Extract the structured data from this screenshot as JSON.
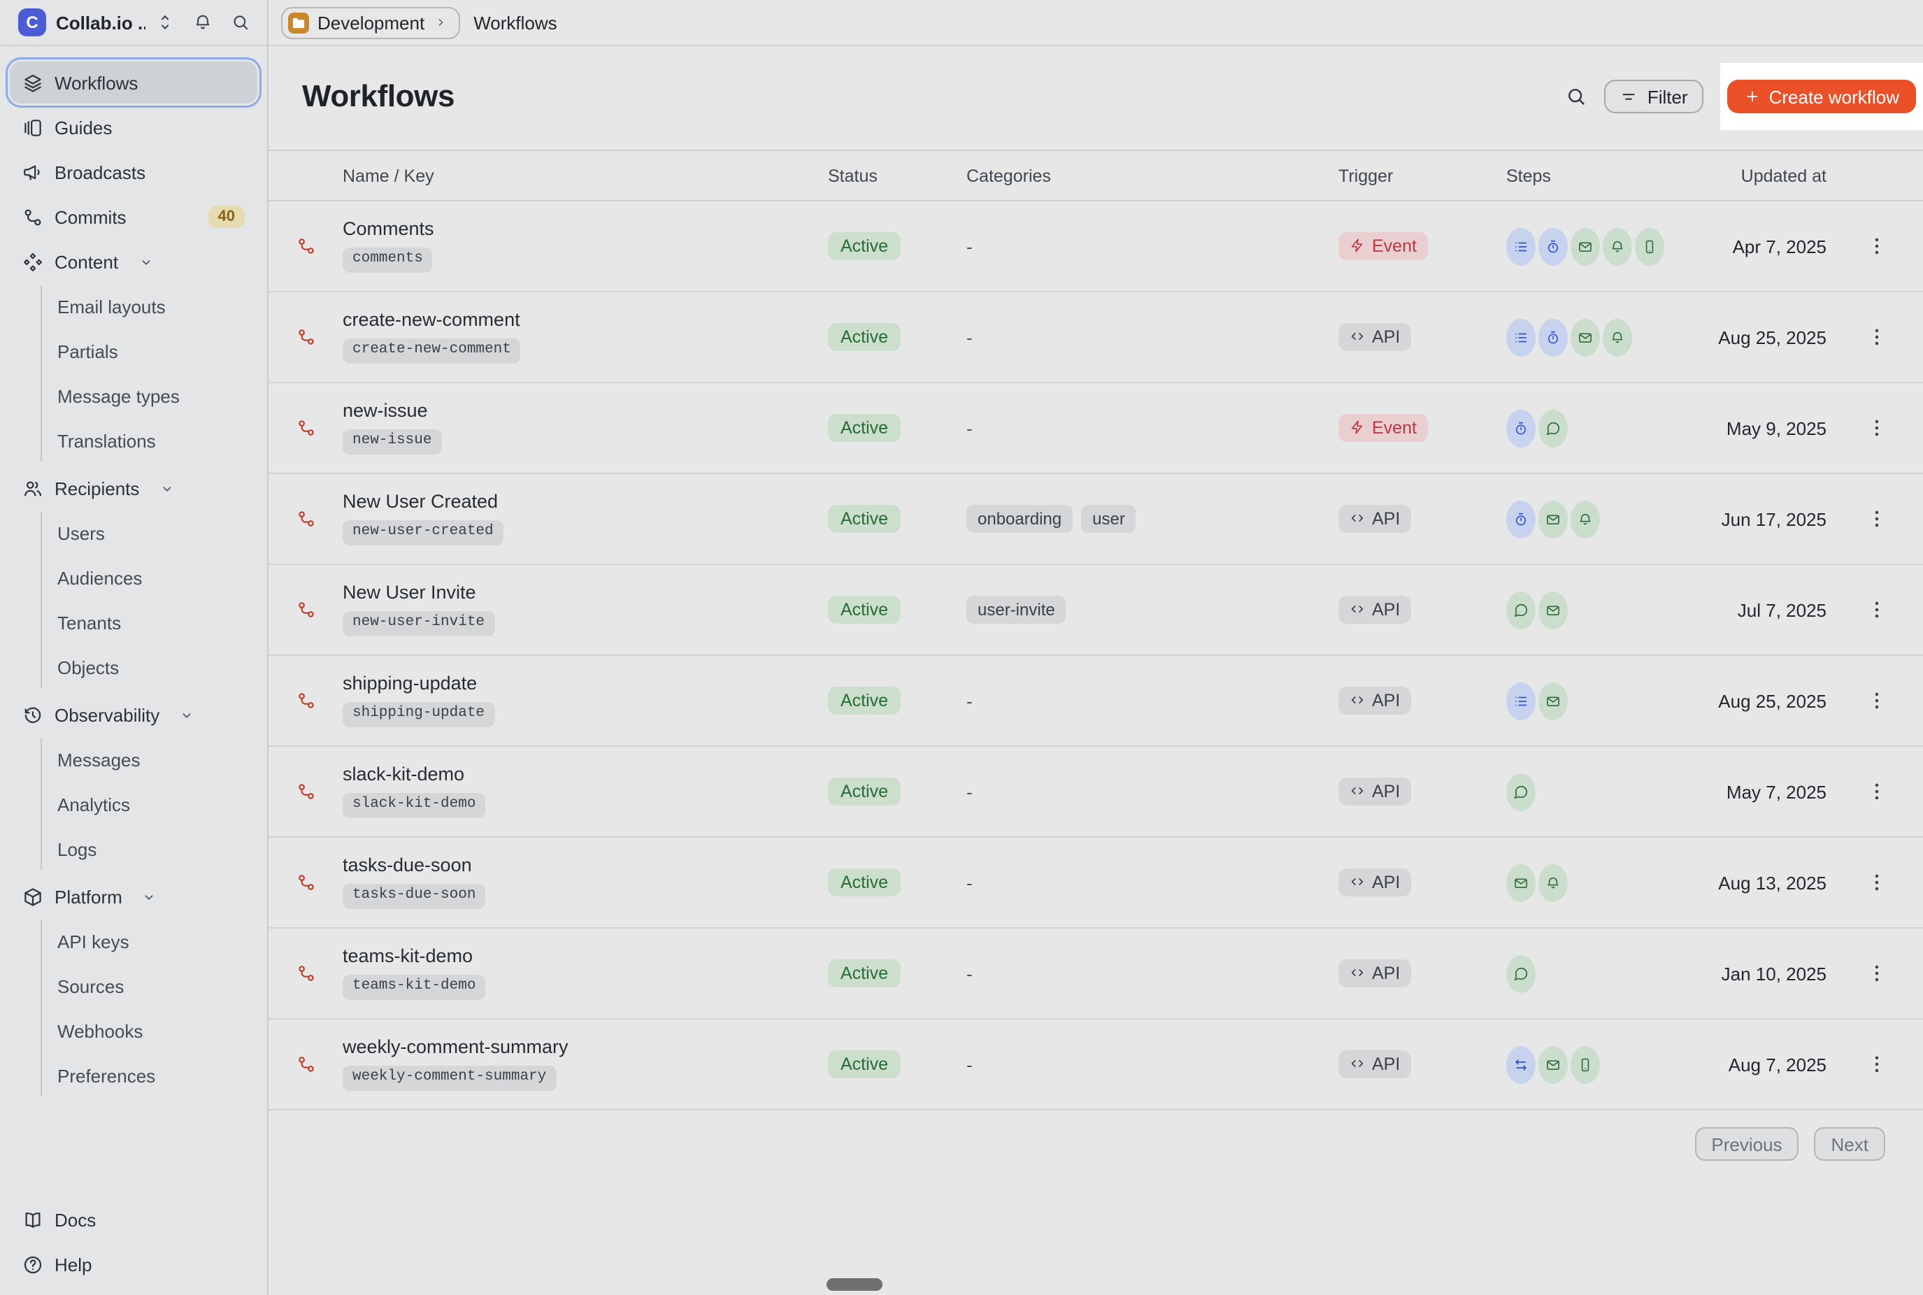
{
  "workspace": {
    "name": "Collab.io ...",
    "logo_letter": "C",
    "logo_color": "#4C5CD5",
    "icons": [
      "workspace-switcher-icon",
      "bell-icon",
      "search-icon"
    ]
  },
  "topbar": {
    "environment": "Development",
    "environment_icon": "folder-icon",
    "breadcrumb_page": "Workflows"
  },
  "sidebar": {
    "items": [
      {
        "label": "Workflows",
        "icon": "workflows-icon",
        "selected": true
      },
      {
        "label": "Guides",
        "icon": "guides-icon"
      },
      {
        "label": "Broadcasts",
        "icon": "broadcasts-icon"
      },
      {
        "label": "Commits",
        "icon": "commits-icon",
        "badge": "40"
      },
      {
        "label": "Content",
        "icon": "content-icon",
        "expandable": true,
        "children": [
          "Email layouts",
          "Partials",
          "Message types",
          "Translations"
        ]
      },
      {
        "label": "Recipients",
        "icon": "recipients-icon",
        "expandable": true,
        "children": [
          "Users",
          "Audiences",
          "Tenants",
          "Objects"
        ]
      },
      {
        "label": "Observability",
        "icon": "observability-icon",
        "expandable": true,
        "children": [
          "Messages",
          "Analytics",
          "Logs"
        ]
      },
      {
        "label": "Platform",
        "icon": "platform-icon",
        "expandable": true,
        "children": [
          "API keys",
          "Sources",
          "Webhooks",
          "Preferences"
        ]
      }
    ],
    "footer_items": [
      {
        "label": "Docs",
        "icon": "docs-icon"
      },
      {
        "label": "Help",
        "icon": "help-icon"
      }
    ]
  },
  "page": {
    "title": "Workflows",
    "filter_label": "Filter",
    "create_label": "Create workflow"
  },
  "table": {
    "columns": [
      "Name / Key",
      "Status",
      "Categories",
      "Trigger",
      "Steps",
      "Updated at"
    ],
    "rows": [
      {
        "name": "Comments",
        "key": "comments",
        "status": "Active",
        "categories": [],
        "trigger": "Event",
        "steps": [
          {
            "icon": "batch-icon",
            "color": "blue"
          },
          {
            "icon": "delay-icon",
            "color": "blue"
          },
          {
            "icon": "email-icon",
            "color": "green"
          },
          {
            "icon": "in-app-icon",
            "color": "green"
          },
          {
            "icon": "push-icon",
            "color": "green"
          }
        ],
        "updated_at": "Apr 7, 2025"
      },
      {
        "name": "create-new-comment",
        "key": "create-new-comment",
        "status": "Active",
        "categories": [],
        "trigger": "API",
        "steps": [
          {
            "icon": "batch-icon",
            "color": "blue"
          },
          {
            "icon": "delay-icon",
            "color": "blue"
          },
          {
            "icon": "email-icon",
            "color": "green"
          },
          {
            "icon": "in-app-icon",
            "color": "green"
          }
        ],
        "updated_at": "Aug 25, 2025"
      },
      {
        "name": "new-issue",
        "key": "new-issue",
        "status": "Active",
        "categories": [],
        "trigger": "Event",
        "steps": [
          {
            "icon": "delay-icon",
            "color": "blue"
          },
          {
            "icon": "chat-icon",
            "color": "green"
          }
        ],
        "updated_at": "May 9, 2025"
      },
      {
        "name": "New User Created",
        "key": "new-user-created",
        "status": "Active",
        "categories": [
          "onboarding",
          "user"
        ],
        "trigger": "API",
        "steps": [
          {
            "icon": "delay-icon",
            "color": "blue"
          },
          {
            "icon": "email-icon",
            "color": "green"
          },
          {
            "icon": "in-app-icon",
            "color": "green"
          }
        ],
        "updated_at": "Jun 17, 2025"
      },
      {
        "name": "New User Invite",
        "key": "new-user-invite",
        "status": "Active",
        "categories": [
          "user-invite"
        ],
        "trigger": "API",
        "steps": [
          {
            "icon": "chat-icon",
            "color": "green"
          },
          {
            "icon": "email-icon",
            "color": "green"
          }
        ],
        "updated_at": "Jul 7, 2025"
      },
      {
        "name": "shipping-update",
        "key": "shipping-update",
        "status": "Active",
        "categories": [],
        "trigger": "API",
        "steps": [
          {
            "icon": "batch-icon",
            "color": "blue"
          },
          {
            "icon": "email-icon",
            "color": "green"
          }
        ],
        "updated_at": "Aug 25, 2025"
      },
      {
        "name": "slack-kit-demo",
        "key": "slack-kit-demo",
        "status": "Active",
        "categories": [],
        "trigger": "API",
        "steps": [
          {
            "icon": "chat-icon",
            "color": "green"
          }
        ],
        "updated_at": "May 7, 2025"
      },
      {
        "name": "tasks-due-soon",
        "key": "tasks-due-soon",
        "status": "Active",
        "categories": [],
        "trigger": "API",
        "steps": [
          {
            "icon": "email-icon",
            "color": "green"
          },
          {
            "icon": "in-app-icon",
            "color": "green"
          }
        ],
        "updated_at": "Aug 13, 2025"
      },
      {
        "name": "teams-kit-demo",
        "key": "teams-kit-demo",
        "status": "Active",
        "categories": [],
        "trigger": "API",
        "steps": [
          {
            "icon": "chat-icon",
            "color": "green"
          }
        ],
        "updated_at": "Jan 10, 2025"
      },
      {
        "name": "weekly-comment-summary",
        "key": "weekly-comment-summary",
        "status": "Active",
        "categories": [],
        "trigger": "API",
        "steps": [
          {
            "icon": "branch-icon",
            "color": "blue"
          },
          {
            "icon": "email-icon",
            "color": "green"
          },
          {
            "icon": "push-icon",
            "color": "green"
          }
        ],
        "updated_at": "Aug 7, 2025"
      }
    ]
  },
  "pagination": {
    "previous_label": "Previous",
    "next_label": "Next"
  },
  "colors": {
    "create_button": "#EA5129",
    "highlight_box": "#FFFFFF",
    "active_badge_bg": "#CBDFCC",
    "active_badge_text": "#276B35",
    "event_badge_bg": "#EACFD0",
    "event_badge_text": "#BC3742",
    "api_badge_bg": "#D6D6D8",
    "api_badge_text": "#3A414B",
    "step_blue_bg": "#C6D2EE",
    "step_blue_icon": "#3452C8",
    "step_green_bg": "#CBDECD",
    "step_green_icon": "#2D6C3A",
    "workflow_icon": "#C23A25",
    "commits_badge_bg": "#E7DCAF",
    "commits_badge_text": "#8A6117",
    "environment_folder": "#C8872B",
    "selected_ring": "#90A9E8"
  }
}
